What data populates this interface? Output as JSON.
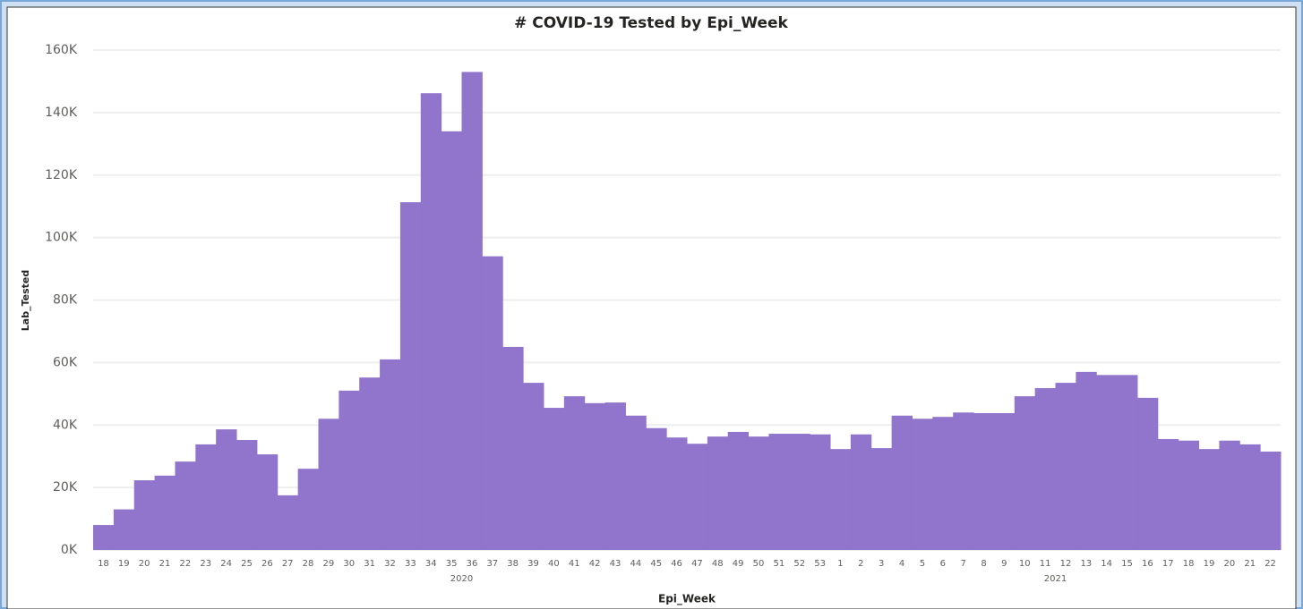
{
  "chart_data": {
    "type": "bar",
    "title": "# COVID-19 Tested by Epi_Week",
    "y_label": "Lab_Tested",
    "x_label": "Epi_Week",
    "color": "#9175cc",
    "grid": true,
    "ylim": [
      0,
      160000
    ],
    "yticks": [
      {
        "value": 0,
        "label": "0K"
      },
      {
        "value": 20000,
        "label": "20K"
      },
      {
        "value": 40000,
        "label": "40K"
      },
      {
        "value": 60000,
        "label": "60K"
      },
      {
        "value": 80000,
        "label": "80K"
      },
      {
        "value": 100000,
        "label": "100K"
      },
      {
        "value": 120000,
        "label": "120K"
      },
      {
        "value": 140000,
        "label": "140K"
      },
      {
        "value": 160000,
        "label": "160K"
      }
    ],
    "groups": [
      {
        "label": "2020",
        "categories": [
          "18",
          "19",
          "20",
          "21",
          "22",
          "23",
          "24",
          "25",
          "26",
          "27",
          "28",
          "29",
          "30",
          "31",
          "32",
          "33",
          "34",
          "35",
          "36",
          "37",
          "38",
          "39",
          "40",
          "41",
          "42",
          "43",
          "44",
          "45",
          "46",
          "47",
          "48",
          "49",
          "50",
          "51",
          "52",
          "53"
        ],
        "values": [
          8000,
          13000,
          22300,
          23800,
          28300,
          33800,
          38600,
          35200,
          30600,
          17500,
          26000,
          42000,
          51000,
          55200,
          61000,
          111300,
          146200,
          134000,
          153000,
          94000,
          65000,
          53500,
          45500,
          49200,
          47000,
          47200,
          43000,
          39000,
          36000,
          34000,
          36300,
          37800,
          36300,
          37200,
          37200,
          37000
        ]
      },
      {
        "label": "2021",
        "categories": [
          "1",
          "2",
          "3",
          "4",
          "5",
          "6",
          "7",
          "8",
          "9",
          "10",
          "11",
          "12",
          "13",
          "14",
          "15",
          "16",
          "17",
          "18",
          "19",
          "20",
          "21",
          "22"
        ],
        "values": [
          32300,
          37000,
          32600,
          43000,
          42000,
          42600,
          44000,
          43800,
          43800,
          49200,
          51800,
          53500,
          57000,
          56000,
          56000,
          48700,
          35500,
          35000,
          32300,
          35000,
          33800,
          31500
        ]
      }
    ]
  }
}
